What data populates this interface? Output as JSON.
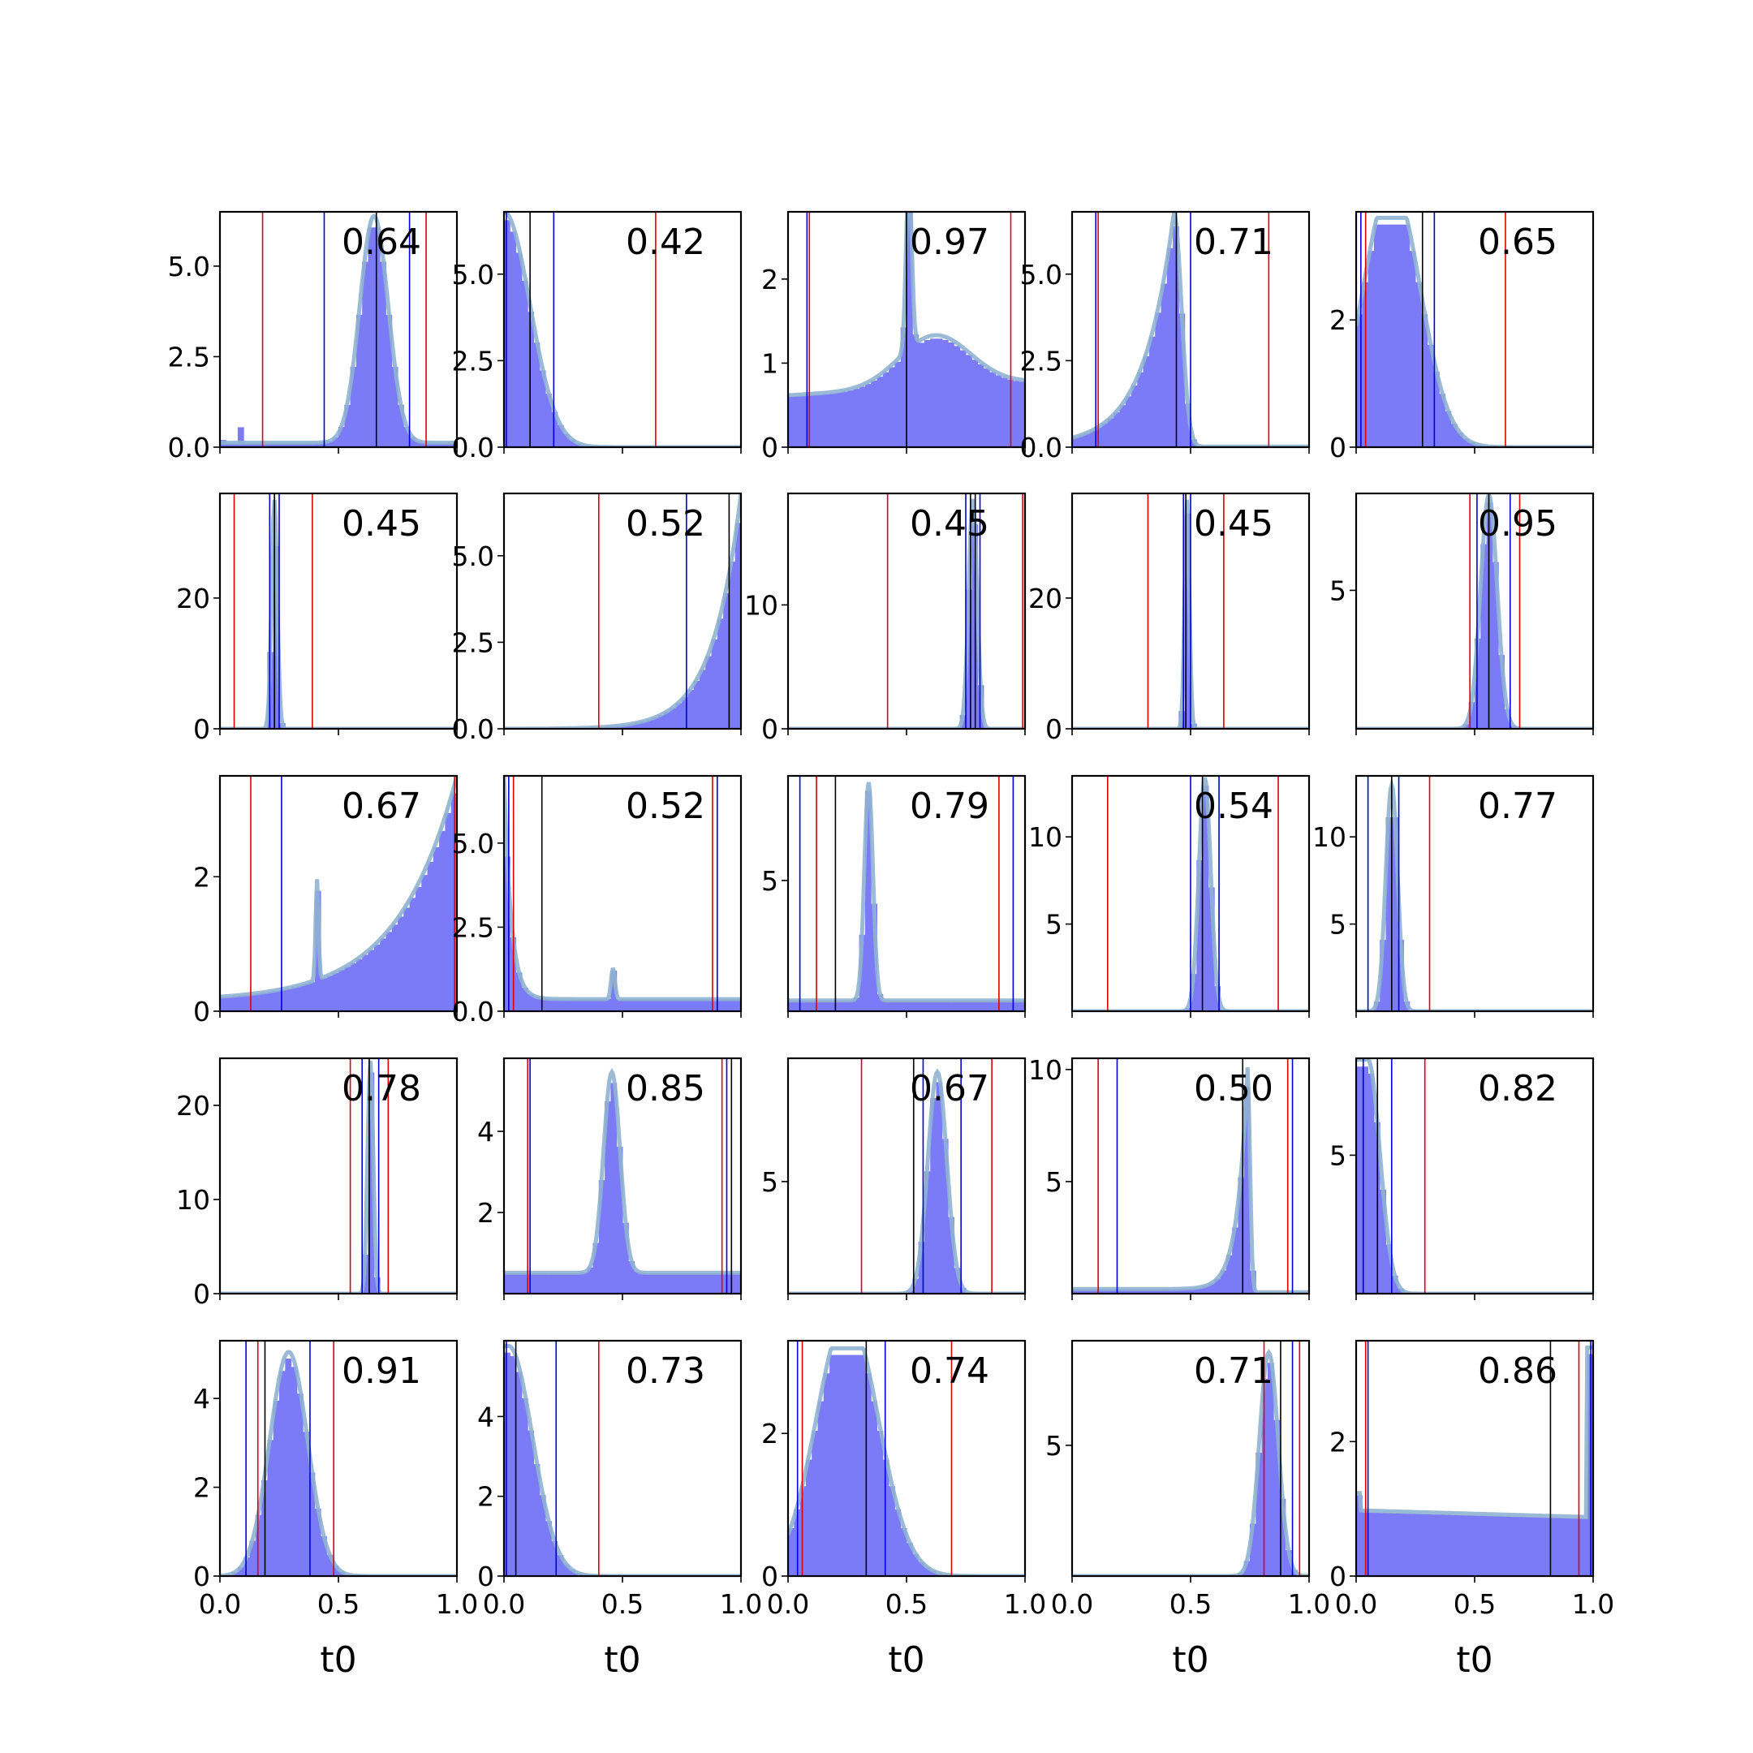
{
  "figure": {
    "xlabel": "t0",
    "xticklabels": [
      "0.0",
      "0.5",
      "1.0"
    ]
  },
  "colors": {
    "histogram": "#7b7bf7",
    "density": "#8fb3d0",
    "red_line": "#e00000",
    "blue_line": "#0000d8",
    "black_line": "#000000"
  },
  "chart_data": [
    {
      "type": "bar",
      "row": 0,
      "col": 0,
      "score": "0.64",
      "ylim": [
        0,
        6.5
      ],
      "yticks": [
        0,
        2.5,
        5
      ],
      "yticklabels": [
        "0.0",
        "2.5",
        "5.0"
      ],
      "lines": {
        "red": [
          0.18,
          0.87
        ],
        "blue": [
          0.44,
          0.8
        ],
        "black": [
          0.66
        ]
      },
      "shape": {
        "kind": "peak",
        "center": 0.65,
        "width": 0.06,
        "height": 6.2,
        "base": 0.12
      },
      "extra_bars": [
        [
          0.02,
          0.2
        ],
        [
          0.08,
          0.55
        ]
      ]
    },
    {
      "type": "bar",
      "row": 0,
      "col": 1,
      "score": "0.42",
      "ylim": [
        0,
        6.8
      ],
      "yticks": [
        0,
        2.5,
        5
      ],
      "yticklabels": [
        "0.0",
        "2.5",
        "5.0"
      ],
      "lines": {
        "red": [
          0.64
        ],
        "blue": [
          0.01,
          0.21
        ],
        "black": [
          0.11
        ]
      },
      "shape": {
        "kind": "halfnormal",
        "center": 0.0,
        "width": 0.11,
        "height": 6.6,
        "base": 0
      }
    },
    {
      "type": "bar",
      "row": 0,
      "col": 2,
      "score": "0.97",
      "ylim": [
        0,
        2.8
      ],
      "yticks": [
        0,
        1,
        2
      ],
      "yticklabels": [
        "0",
        "1",
        "2"
      ],
      "lines": {
        "red": [
          0.09,
          0.94
        ],
        "blue": [
          0.08
        ],
        "black": [
          0.5
        ]
      },
      "shape": {
        "kind": "sharp_mixed",
        "center": 0.51,
        "width": 0.012,
        "height": 2.6,
        "base": 0.6,
        "bump_center": 0.62,
        "bump_width": 0.15,
        "bump_height": 0.6
      }
    },
    {
      "type": "bar",
      "row": 0,
      "col": 3,
      "score": "0.71",
      "ylim": [
        0,
        6.8
      ],
      "yticks": [
        0,
        2.5,
        5
      ],
      "yticklabels": [
        "0.0",
        "2.5",
        "5.0"
      ],
      "lines": {
        "red": [
          0.11,
          0.83
        ],
        "blue": [
          0.1,
          0.5
        ],
        "black": [
          0.44
        ]
      },
      "shape": {
        "kind": "rightskew",
        "center": 0.43,
        "width": 0.09,
        "height": 6.6,
        "base": 0.05
      }
    },
    {
      "type": "bar",
      "row": 0,
      "col": 4,
      "score": "0.65",
      "ylim": [
        0,
        3.7
      ],
      "yticks": [
        0,
        2
      ],
      "yticklabels": [
        "0",
        "2"
      ],
      "lines": {
        "red": [
          0.04,
          0.63
        ],
        "blue": [
          0.02,
          0.33
        ],
        "black": [
          0.28
        ]
      },
      "shape": {
        "kind": "plateau",
        "center": 0.15,
        "width": 0.12,
        "height": 3.5,
        "base": 0
      }
    },
    {
      "type": "bar",
      "row": 1,
      "col": 0,
      "score": "0.45",
      "ylim": [
        0,
        36
      ],
      "yticks": [
        0,
        20
      ],
      "yticklabels": [
        "0",
        "20"
      ],
      "lines": {
        "red": [
          0.06,
          0.39
        ],
        "blue": [
          0.21,
          0.25
        ],
        "black": [
          0.23
        ]
      },
      "shape": {
        "kind": "peak",
        "center": 0.23,
        "width": 0.012,
        "height": 34,
        "base": 0
      }
    },
    {
      "type": "bar",
      "row": 1,
      "col": 1,
      "score": "0.52",
      "ylim": [
        0,
        6.8
      ],
      "yticks": [
        0,
        2.5,
        5
      ],
      "yticklabels": [
        "0.0",
        "2.5",
        "5.0"
      ],
      "lines": {
        "red": [
          0.4
        ],
        "blue": [
          0.77
        ],
        "black": [
          0.95
        ]
      },
      "shape": {
        "kind": "rightgrowth",
        "center": 1.0,
        "width": 0.12,
        "height": 6.6,
        "base": 0
      }
    },
    {
      "type": "bar",
      "row": 1,
      "col": 2,
      "score": "0.45",
      "ylim": [
        0,
        19
      ],
      "yticks": [
        0,
        10
      ],
      "yticklabels": [
        "0",
        "10"
      ],
      "lines": {
        "red": [
          0.42,
          0.99
        ],
        "blue": [
          0.75,
          0.81
        ],
        "black": [
          0.77,
          0.79
        ]
      },
      "shape": {
        "kind": "peak",
        "center": 0.78,
        "width": 0.018,
        "height": 18,
        "base": 0
      }
    },
    {
      "type": "bar",
      "row": 1,
      "col": 3,
      "score": "0.45",
      "ylim": [
        0,
        36
      ],
      "yticks": [
        0,
        20
      ],
      "yticklabels": [
        "0",
        "20"
      ],
      "lines": {
        "red": [
          0.32,
          0.64
        ],
        "blue": [
          0.47,
          0.5
        ],
        "black": [
          0.48
        ]
      },
      "shape": {
        "kind": "peak",
        "center": 0.485,
        "width": 0.01,
        "height": 34,
        "base": 0
      }
    },
    {
      "type": "bar",
      "row": 1,
      "col": 4,
      "score": "0.95",
      "ylim": [
        0,
        8.5
      ],
      "yticks": [
        5
      ],
      "yticklabels": [
        "5"
      ],
      "lines": {
        "red": [
          0.48,
          0.69
        ],
        "blue": [
          0.51,
          0.65
        ],
        "black": [
          0.56
        ]
      },
      "shape": {
        "kind": "peak",
        "center": 0.56,
        "width": 0.035,
        "height": 8.2,
        "base": 0
      }
    },
    {
      "type": "bar",
      "row": 2,
      "col": 0,
      "score": "0.67",
      "ylim": [
        0,
        3.5
      ],
      "yticks": [
        0,
        2
      ],
      "yticklabels": [
        "0",
        "2"
      ],
      "lines": {
        "red": [
          0.13,
          0.99
        ],
        "blue": [
          0.26
        ],
        "black": []
      },
      "shape": {
        "kind": "exprise",
        "center": 1.0,
        "width": 0.25,
        "height": 3.4,
        "base": 0.15,
        "spike_center": 0.41,
        "spike_height": 1.45
      }
    },
    {
      "type": "bar",
      "row": 2,
      "col": 1,
      "score": "0.52",
      "ylim": [
        0,
        7
      ],
      "yticks": [
        0,
        2.5,
        5
      ],
      "yticklabels": [
        "0.0",
        "2.5",
        "5.0"
      ],
      "lines": {
        "red": [
          0.04,
          0.88
        ],
        "blue": [
          0.02,
          0.9
        ],
        "black": [
          0.16
        ]
      },
      "shape": {
        "kind": "leftdecay",
        "center": 0.0,
        "width": 0.03,
        "height": 6.8,
        "base": 0.35,
        "spike_center": 0.46,
        "spike_height": 0.9
      }
    },
    {
      "type": "bar",
      "row": 2,
      "col": 2,
      "score": "0.79",
      "ylim": [
        0,
        9
      ],
      "yticks": [
        5
      ],
      "yticklabels": [
        "5"
      ],
      "lines": {
        "red": [
          0.12,
          0.89
        ],
        "blue": [
          0.05,
          0.95
        ],
        "black": [
          0.2
        ]
      },
      "shape": {
        "kind": "peak",
        "center": 0.34,
        "width": 0.018,
        "height": 8.5,
        "base": 0.4
      }
    },
    {
      "type": "bar",
      "row": 2,
      "col": 3,
      "score": "0.54",
      "ylim": [
        0,
        13.5
      ],
      "yticks": [
        5,
        10
      ],
      "yticklabels": [
        "5",
        "10"
      ],
      "lines": {
        "red": [
          0.15,
          0.87
        ],
        "blue": [
          0.5,
          0.62
        ],
        "black": [
          0.55
        ]
      },
      "shape": {
        "kind": "peak",
        "center": 0.56,
        "width": 0.025,
        "height": 13,
        "base": 0
      }
    },
    {
      "type": "bar",
      "row": 2,
      "col": 4,
      "score": "0.77",
      "ylim": [
        0,
        13.5
      ],
      "yticks": [
        5,
        10
      ],
      "yticklabels": [
        "5",
        "10"
      ],
      "lines": {
        "red": [
          0.31
        ],
        "blue": [
          0.05,
          0.18
        ],
        "black": [
          0.15
        ]
      },
      "shape": {
        "kind": "peak",
        "center": 0.15,
        "width": 0.025,
        "height": 12.6,
        "base": 0
      }
    },
    {
      "type": "bar",
      "row": 3,
      "col": 0,
      "score": "0.78",
      "ylim": [
        0,
        25
      ],
      "yticks": [
        0,
        10,
        20
      ],
      "yticklabels": [
        "0",
        "10",
        "20"
      ],
      "lines": {
        "red": [
          0.55,
          0.71
        ],
        "blue": [
          0.6,
          0.67
        ],
        "black": [
          0.63
        ]
      },
      "shape": {
        "kind": "peak",
        "center": 0.635,
        "width": 0.012,
        "height": 24,
        "base": 0
      }
    },
    {
      "type": "bar",
      "row": 3,
      "col": 1,
      "score": "0.85",
      "ylim": [
        0,
        5.8
      ],
      "yticks": [
        2,
        4
      ],
      "yticklabels": [
        "2",
        "4"
      ],
      "lines": {
        "red": [
          0.1,
          0.92
        ],
        "blue": [
          0.11,
          0.94
        ],
        "black": [
          0.96
        ]
      },
      "shape": {
        "kind": "peak",
        "center": 0.455,
        "width": 0.035,
        "height": 5.3,
        "base": 0.5
      }
    },
    {
      "type": "bar",
      "row": 3,
      "col": 2,
      "score": "0.67",
      "ylim": [
        0,
        10.5
      ],
      "yticks": [
        5
      ],
      "yticklabels": [
        "5"
      ],
      "lines": {
        "red": [
          0.31,
          0.86
        ],
        "blue": [
          0.57,
          0.73
        ],
        "black": [
          0.53
        ]
      },
      "shape": {
        "kind": "peak",
        "center": 0.63,
        "width": 0.04,
        "height": 9.6,
        "base": 0
      }
    },
    {
      "type": "bar",
      "row": 3,
      "col": 3,
      "score": "0.50",
      "ylim": [
        0,
        10.5
      ],
      "yticks": [
        5,
        10
      ],
      "yticklabels": [
        "5",
        "10"
      ],
      "lines": {
        "red": [
          0.11,
          0.91
        ],
        "blue": [
          0.19,
          0.93
        ],
        "black": [
          0.72
        ]
      },
      "shape": {
        "kind": "rightskew",
        "center": 0.74,
        "width": 0.03,
        "height": 9.8,
        "base": 0.2
      }
    },
    {
      "type": "bar",
      "row": 3,
      "col": 4,
      "score": "0.82",
      "ylim": [
        0,
        8.5
      ],
      "yticks": [
        5
      ],
      "yticklabels": [
        "5"
      ],
      "lines": {
        "red": [
          0.29
        ],
        "blue": [
          0.03,
          0.15
        ],
        "black": [
          0.09
        ]
      },
      "shape": {
        "kind": "halfnormal",
        "center": 0.05,
        "width": 0.05,
        "height": 8.2,
        "base": 0
      }
    },
    {
      "type": "bar",
      "row": 4,
      "col": 0,
      "score": "0.91",
      "ylim": [
        0,
        5.3
      ],
      "yticks": [
        0,
        2,
        4
      ],
      "yticklabels": [
        "0",
        "2",
        "4"
      ],
      "lines": {
        "red": [
          0.16,
          0.48
        ],
        "blue": [
          0.11,
          0.38
        ],
        "black": [
          0.19
        ]
      },
      "shape": {
        "kind": "peak",
        "center": 0.29,
        "width": 0.08,
        "height": 4.9,
        "base": 0
      }
    },
    {
      "type": "bar",
      "row": 4,
      "col": 1,
      "score": "0.73",
      "ylim": [
        0,
        5.9
      ],
      "yticks": [
        0,
        2,
        4
      ],
      "yticklabels": [
        "0",
        "2",
        "4"
      ],
      "lines": {
        "red": [
          0.4
        ],
        "blue": [
          0.01,
          0.22
        ],
        "black": [
          0.05
        ]
      },
      "shape": {
        "kind": "halfnormal",
        "center": 0.02,
        "width": 0.1,
        "height": 5.6,
        "base": 0
      }
    },
    {
      "type": "bar",
      "row": 4,
      "col": 2,
      "score": "0.74",
      "ylim": [
        0,
        3.3
      ],
      "yticks": [
        0,
        2
      ],
      "yticklabels": [
        "0",
        "2"
      ],
      "lines": {
        "red": [
          0.06,
          0.69
        ],
        "blue": [
          0.04,
          0.41
        ],
        "black": [
          0.33
        ]
      },
      "shape": {
        "kind": "plateau",
        "center": 0.25,
        "width": 0.13,
        "height": 3.1,
        "base": 0
      }
    },
    {
      "type": "bar",
      "row": 4,
      "col": 3,
      "score": "0.71",
      "ylim": [
        0,
        9
      ],
      "yticks": [
        5
      ],
      "yticklabels": [
        "5"
      ],
      "lines": {
        "red": [
          0.81,
          0.96
        ],
        "blue": [
          0.93
        ],
        "black": [
          0.88
        ]
      },
      "shape": {
        "kind": "peak",
        "center": 0.83,
        "width": 0.04,
        "height": 8.3,
        "base": 0
      }
    },
    {
      "type": "bar",
      "row": 4,
      "col": 4,
      "score": "0.86",
      "ylim": [
        0,
        3.5
      ],
      "yticks": [
        0,
        2
      ],
      "yticklabels": [
        "0",
        "2"
      ],
      "lines": {
        "red": [
          0.04,
          0.94
        ],
        "blue": [
          0.05,
          0.99
        ],
        "black": [
          0.82
        ]
      },
      "shape": {
        "kind": "flat_edges",
        "center": 0.5,
        "width": 1,
        "height": 3.3,
        "base": 0.95
      }
    }
  ]
}
